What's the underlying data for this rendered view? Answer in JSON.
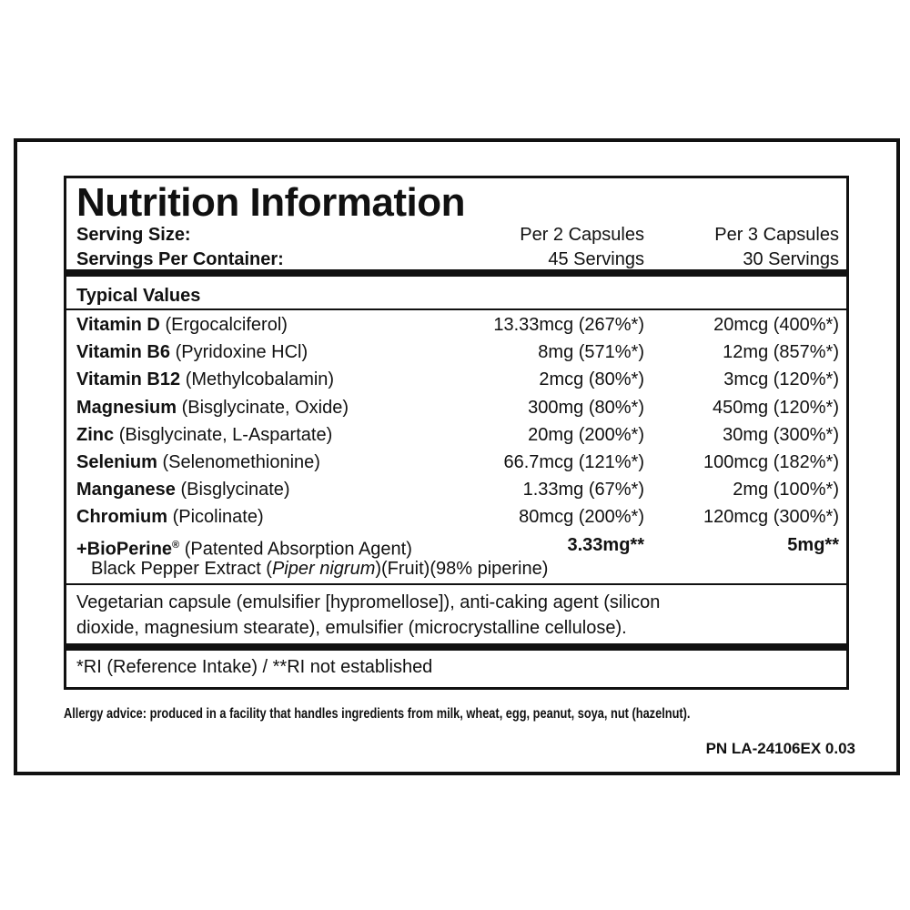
{
  "header": {
    "title": "Nutrition Information"
  },
  "serving": [
    {
      "label": "Serving Size:",
      "col1": "Per 2 Capsules",
      "col2": "Per 3 Capsules"
    },
    {
      "label": "Servings Per Container:",
      "col1": "45 Servings",
      "col2": "30 Servings"
    }
  ],
  "table": {
    "heading": "Typical Values",
    "rows": [
      {
        "name": "Vitamin D",
        "detail": "(Ergocalciferol)",
        "col1": "13.33mcg (267%*)",
        "col2": "20mcg (400%*)"
      },
      {
        "name": "Vitamin B6",
        "detail": "(Pyridoxine HCl)",
        "col1": "8mg (571%*)",
        "col2": "12mg (857%*)"
      },
      {
        "name": "Vitamin B12",
        "detail": "(Methylcobalamin)",
        "col1": "2mcg (80%*)",
        "col2": "3mcg (120%*)"
      },
      {
        "name": "Magnesium",
        "detail": "(Bisglycinate, Oxide)",
        "col1": "300mg (80%*)",
        "col2": "450mg (120%*)"
      },
      {
        "name": "Zinc",
        "detail": "(Bisglycinate, L-Aspartate)",
        "col1": "20mg (200%*)",
        "col2": "30mg (300%*)"
      },
      {
        "name": "Selenium",
        "detail": "(Selenomethionine)",
        "col1": "66.7mcg (121%*)",
        "col2": "100mcg (182%*)"
      },
      {
        "name": "Manganese",
        "detail": "(Bisglycinate)",
        "col1": "1.33mg (67%*)",
        "col2": "2mg (100%*)"
      },
      {
        "name": "Chromium",
        "detail": "(Picolinate)",
        "col1": "80mcg (200%*)",
        "col2": "120mcg (300%*)"
      },
      {
        "name": "+BioPerine",
        "mark": "®",
        "detail": "(Patented Absorption Agent)",
        "col1": "3.33mg**",
        "col2": "5mg**"
      }
    ],
    "sub": {
      "prefix": "Black Pepper Extract (",
      "italic": "Piper nigrum",
      "suffix": ")(Fruit)(98% piperine)"
    }
  },
  "ingredients": [
    "Vegetarian capsule (emulsifier [hypromellose]), anti-caking agent (silicon",
    "dioxide, magnesium stearate), emulsifier (microcrystalline cellulose)."
  ],
  "footnote": "*RI (Reference Intake) / **RI not established",
  "allergy": "Allergy advice: produced in a facility that handles ingredients from milk, wheat, egg, peanut, soya, nut (hazelnut).",
  "code": "PN LA-24106EX 0.03"
}
